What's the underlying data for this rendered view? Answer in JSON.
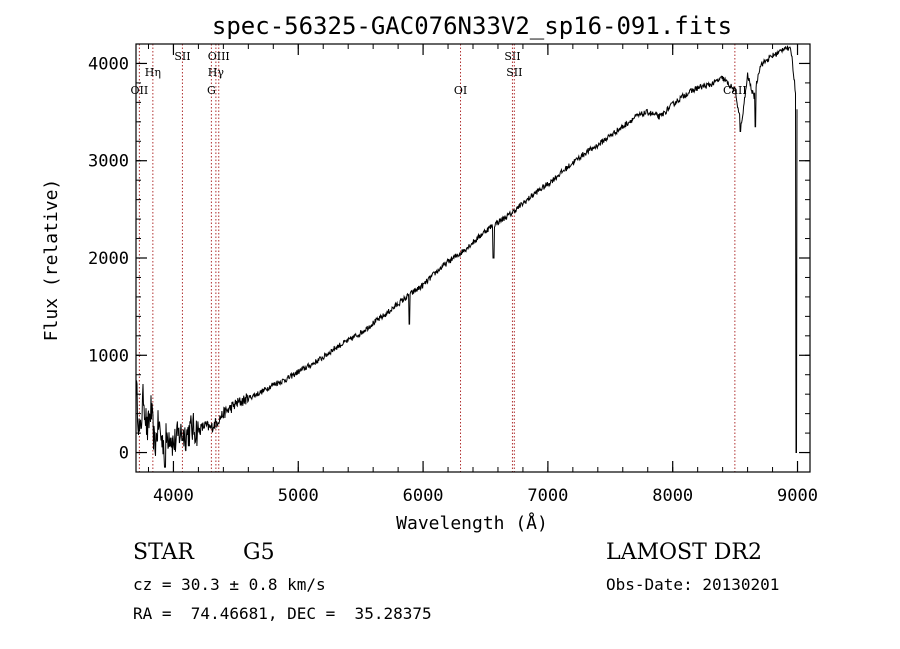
{
  "chart_data": {
    "type": "line",
    "title": "spec-56325-GAC076N33V2_sp16-091.fits",
    "xlabel": "Wavelength (Å)",
    "ylabel": "Flux (relative)",
    "xlim": [
      3700,
      9100
    ],
    "ylim": [
      -200,
      4200
    ],
    "xticks": [
      4000,
      5000,
      6000,
      7000,
      8000,
      9000
    ],
    "yticks": [
      0,
      1000,
      2000,
      3000,
      4000
    ],
    "grid": false,
    "line_color": "#000000",
    "marker_color": "#b03030",
    "series": [
      {
        "x": [
          3700,
          3730,
          3760,
          3790,
          3820,
          3850,
          3880,
          3910,
          3940,
          3970,
          4000,
          4050,
          4100,
          4150,
          4200,
          4250,
          4300,
          4350,
          4400,
          4500,
          4600,
          4700,
          4800,
          4900,
          5000,
          5100,
          5200,
          5300,
          5400,
          5500,
          5600,
          5700,
          5800,
          5900,
          6000,
          6100,
          6200,
          6300,
          6400,
          6500,
          6600,
          6700,
          6800,
          6900,
          7000,
          7100,
          7200,
          7300,
          7400,
          7500,
          7600,
          7700,
          7800,
          7900,
          8000,
          8100,
          8200,
          8300,
          8400,
          8500,
          8550,
          8600,
          8650,
          8700,
          8750,
          8800,
          8850,
          8900,
          8950,
          9000
        ],
        "y": [
          700,
          150,
          600,
          200,
          450,
          50,
          300,
          100,
          150,
          200,
          80,
          200,
          180,
          250,
          220,
          280,
          250,
          320,
          400,
          500,
          560,
          620,
          700,
          750,
          830,
          900,
          980,
          1080,
          1150,
          1230,
          1330,
          1420,
          1530,
          1630,
          1720,
          1850,
          1960,
          2050,
          2160,
          2280,
          2370,
          2450,
          2560,
          2670,
          2760,
          2870,
          2980,
          3080,
          3160,
          3260,
          3350,
          3450,
          3500,
          3450,
          3580,
          3680,
          3750,
          3780,
          3850,
          3720,
          3350,
          3880,
          3650,
          3980,
          4030,
          4080,
          4110,
          4170,
          4130,
          3500
        ]
      }
    ],
    "dips": [
      {
        "x": 3933,
        "y": -150
      },
      {
        "x": 5890,
        "y": 1320
      },
      {
        "x": 6563,
        "y": 2000
      },
      {
        "x": 8542,
        "y": 3300
      },
      {
        "x": 8662,
        "y": 3350
      },
      {
        "x": 8990,
        "y": 0
      }
    ],
    "lines": [
      {
        "x": 3727,
        "labels": [
          "OII"
        ],
        "row": 3
      },
      {
        "x": 3835,
        "labels": [
          "Hη"
        ],
        "row": 2
      },
      {
        "x": 4072,
        "labels": [
          "SII"
        ],
        "row": 1
      },
      {
        "x": 4304,
        "labels": [
          "G"
        ],
        "row": 3
      },
      {
        "x": 4340,
        "labels": [
          "Hγ"
        ],
        "row": 2
      },
      {
        "x": 4363,
        "labels": [
          "OIII"
        ],
        "row": 1
      },
      {
        "x": 6300,
        "labels": [
          "OI"
        ],
        "row": 3
      },
      {
        "x": 6716,
        "labels": [
          "SII"
        ],
        "row": 1
      },
      {
        "x": 6731,
        "labels": [
          "SII"
        ],
        "row": 2
      },
      {
        "x": 8498,
        "labels": [
          "CaII"
        ],
        "row": 3
      }
    ]
  },
  "info": {
    "object_type": "STAR",
    "subclass": "G5",
    "survey": "LAMOST DR2",
    "cz": "cz = 30.3 ± 0.8 km/s",
    "obs_date": "Obs-Date: 20130201",
    "coords": "RA =  74.46681, DEC =  35.28375"
  }
}
